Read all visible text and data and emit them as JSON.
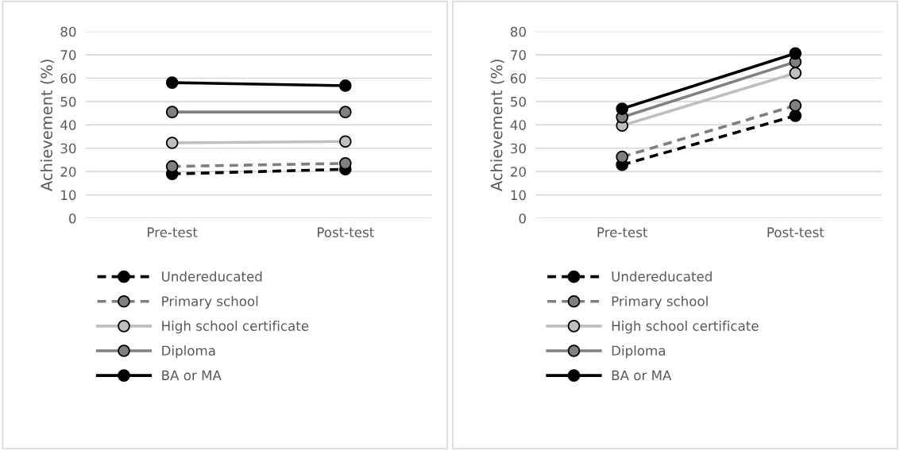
{
  "chart_data": [
    {
      "type": "line",
      "ylabel": "Achievement (%)",
      "categories": [
        "Pre-test",
        "Post-test"
      ],
      "ylim": [
        0,
        80
      ],
      "yticks": [
        0,
        10,
        20,
        30,
        40,
        50,
        60,
        70,
        80
      ],
      "grid": "y",
      "legend": "bottom",
      "marker": "circle",
      "series": [
        {
          "name": "Undereducated",
          "color": "#000000",
          "line_style": "dashed",
          "values": [
            19,
            21
          ]
        },
        {
          "name": "Primary school",
          "color": "#7f7f7f",
          "line_style": "dashed",
          "values": [
            22.2,
            23.5
          ]
        },
        {
          "name": "High school certificate",
          "color": "#bfbfbf",
          "line_style": "solid",
          "values": [
            32.3,
            32.9
          ]
        },
        {
          "name": "Diploma",
          "color": "#808080",
          "line_style": "solid",
          "values": [
            45.5,
            45.5
          ]
        },
        {
          "name": "BA or MA",
          "color": "#000000",
          "line_style": "solid",
          "values": [
            58.1,
            56.8
          ]
        }
      ]
    },
    {
      "type": "line",
      "ylabel": "Achievement (%)",
      "categories": [
        "Pre-test",
        "Post-test"
      ],
      "ylim": [
        0,
        80
      ],
      "yticks": [
        0,
        10,
        20,
        30,
        40,
        50,
        60,
        70,
        80
      ],
      "grid": "y",
      "legend": "bottom",
      "marker": "circle",
      "series": [
        {
          "name": "Undereducated",
          "color": "#000000",
          "line_style": "dashed",
          "values": [
            22.9,
            43.9
          ]
        },
        {
          "name": "Primary school",
          "color": "#7f7f7f",
          "line_style": "dashed",
          "values": [
            26.3,
            48.3
          ]
        },
        {
          "name": "High school certificate",
          "color": "#bfbfbf",
          "line_style": "solid",
          "values": [
            39.7,
            62.2
          ]
        },
        {
          "name": "Diploma",
          "color": "#808080",
          "line_style": "solid",
          "values": [
            43.3,
            67
          ]
        },
        {
          "name": "BA or MA",
          "color": "#000000",
          "line_style": "solid",
          "values": [
            46.9,
            70.6
          ]
        }
      ]
    }
  ]
}
